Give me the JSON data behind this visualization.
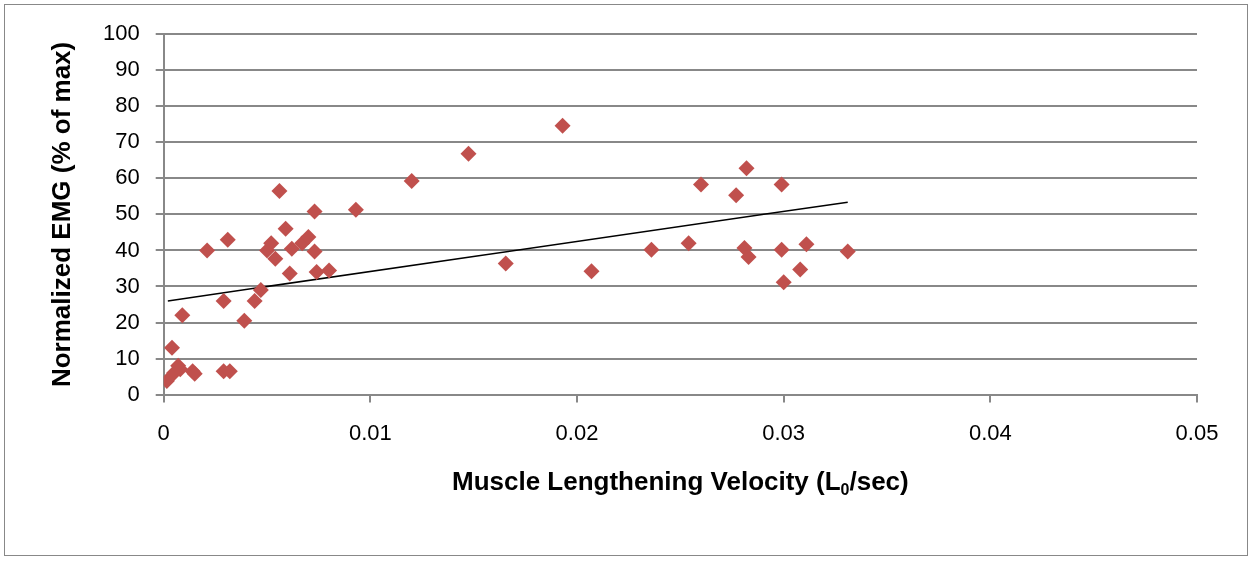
{
  "chart_data": {
    "type": "scatter",
    "xlabel": "Muscle Lengthening Velocity (L$_{0}$/sec)",
    "ylabel": "Normalized EMG (% of max)",
    "xlim": [
      0,
      0.05
    ],
    "xticks": [
      0,
      0.01,
      0.02,
      0.03,
      0.04,
      0.05
    ],
    "ylim": [
      0,
      100
    ],
    "yticks": [
      0,
      10,
      20,
      30,
      40,
      50,
      60,
      70,
      80,
      90,
      100
    ],
    "grid": "y",
    "legend": false,
    "marker": "diamond",
    "series": [
      {
        "type": "scatter",
        "color": "#c0504d",
        "x": [
          0.00015,
          0.0004,
          0.0005,
          0.0007,
          0.0008,
          0.0009,
          0.0014,
          0.0015,
          0.0021,
          0.0029,
          0.0032,
          0.0029,
          0.0031,
          0.0039,
          0.0044,
          0.0047,
          0.005,
          0.0052,
          0.0054,
          0.0056,
          0.0059,
          0.0061,
          0.0062,
          0.0067,
          0.007,
          0.0073,
          0.0073,
          0.0074,
          0.008,
          0.0093,
          0.012,
          0.01475,
          0.0193,
          0.01655,
          0.0207,
          0.0236,
          0.0254,
          0.026,
          0.0277,
          0.0282,
          0.0281,
          0.0283,
          0.0299,
          0.0299,
          0.03,
          0.0308,
          0.0311,
          0.0331
        ],
        "values": [
          3.8,
          13,
          6,
          8,
          7,
          22,
          6.5,
          5.8,
          40,
          6.5,
          6.5,
          26,
          43,
          20.5,
          26,
          29,
          40,
          42,
          37.7,
          56.5,
          46,
          33.6,
          40.5,
          42,
          43.7,
          39.7,
          50.8,
          34,
          34.4,
          51.3,
          59.3,
          66.8,
          74.6,
          36.4,
          34.2,
          40.2,
          42,
          58.3,
          55.3,
          62.8,
          40.7,
          38.2,
          58.3,
          40.2,
          31.2,
          34.7,
          41.7,
          39.7
        ]
      },
      {
        "type": "line",
        "color": "#000000",
        "marker": "none",
        "x": [
          0.0002,
          0.0331
        ],
        "values": [
          26,
          53.4
        ]
      }
    ]
  }
}
